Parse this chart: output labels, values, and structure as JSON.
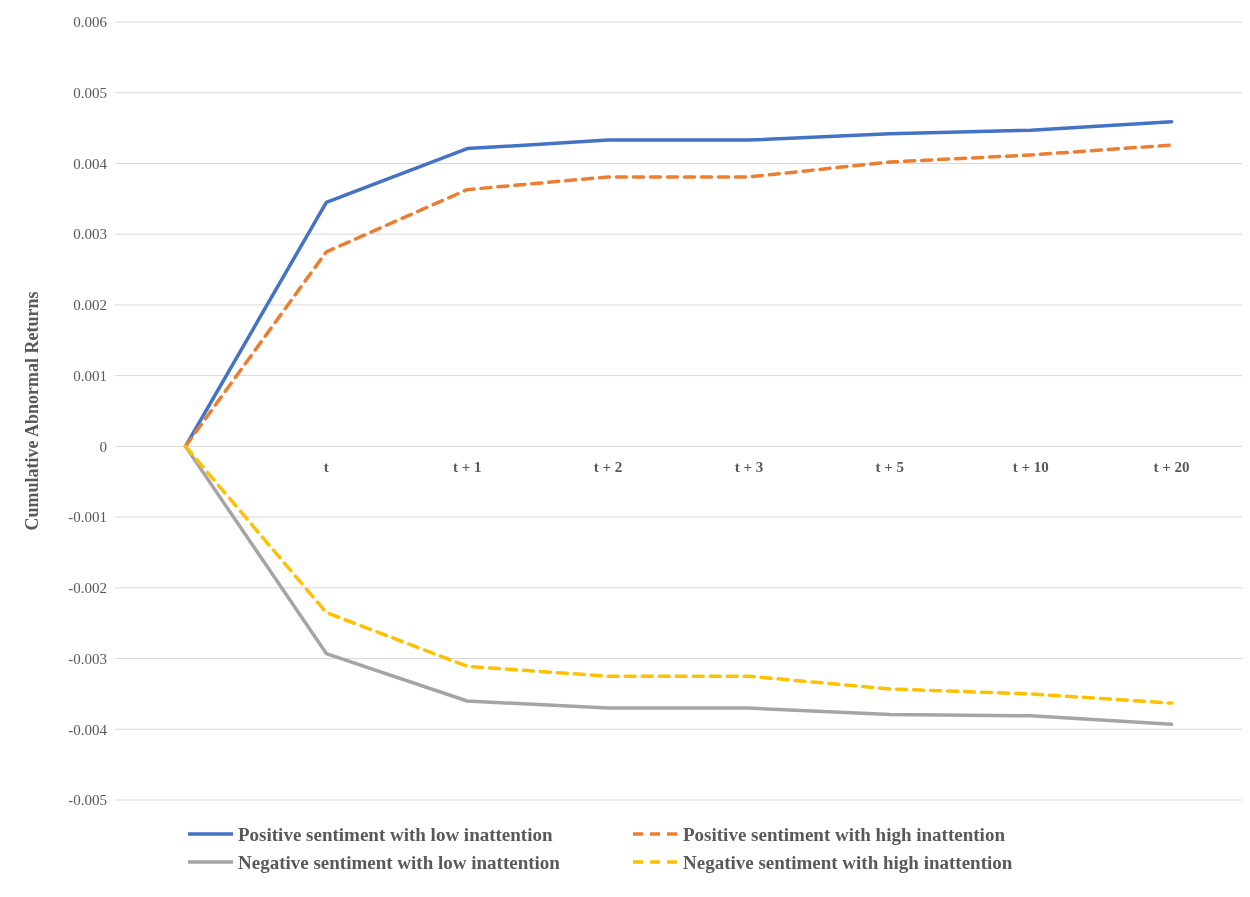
{
  "chart_data": {
    "type": "line",
    "ylabel": "Cumulative Abnormal Returns",
    "categories": [
      null,
      "t",
      "t + 1",
      "t + 2",
      "t + 3",
      "t + 5",
      "t + 10",
      "t + 20"
    ],
    "series": [
      {
        "name": "Positive sentiment with low inattention",
        "color": "#4472c4",
        "line_style": "solid",
        "values": [
          0,
          0.00345,
          0.00421,
          0.00433,
          0.00433,
          0.00442,
          0.00447,
          0.00459
        ]
      },
      {
        "name": "Positive sentiment with high inattention",
        "color": "#ed7d31",
        "line_style": "dashed",
        "values": [
          0,
          0.00275,
          0.00363,
          0.00381,
          0.00381,
          0.00402,
          0.00412,
          0.00426
        ]
      },
      {
        "name": "Negative sentiment with low inattention",
        "color": "#a5a5a5",
        "line_style": "solid",
        "values": [
          0,
          -0.00293,
          -0.0036,
          -0.0037,
          -0.0037,
          -0.00379,
          -0.00381,
          -0.00393
        ]
      },
      {
        "name": "Negative sentiment with high inattention",
        "color": "#ffc000",
        "line_style": "dashed",
        "values": [
          0,
          -0.00235,
          -0.00311,
          -0.00325,
          -0.00325,
          -0.00343,
          -0.0035,
          -0.00363
        ]
      }
    ],
    "ylim": [
      -0.005,
      0.006
    ],
    "yticks": [
      -0.005,
      -0.004,
      -0.003,
      -0.002,
      -0.001,
      0,
      0.001,
      0.002,
      0.003,
      0.004,
      0.005,
      0.006
    ],
    "grid": "y",
    "legend": "bottom",
    "marker": "none"
  }
}
